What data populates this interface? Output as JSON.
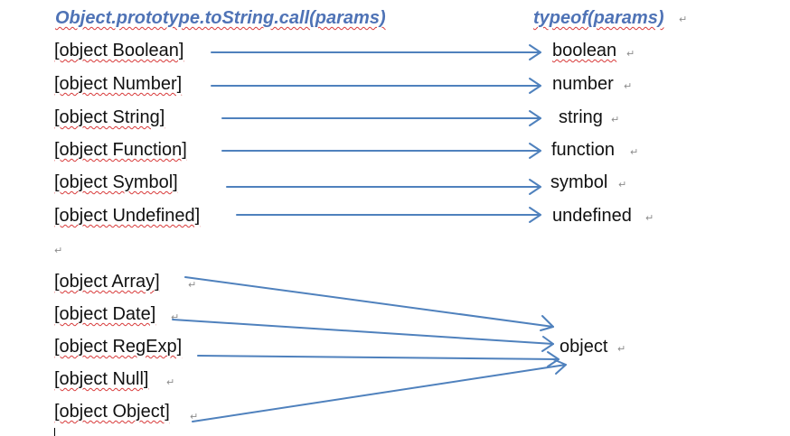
{
  "header": {
    "left": "Object.prototype.toString.call(params)",
    "right": "typeof(params)"
  },
  "rows": [
    {
      "left": "[object Boolean]",
      "right": "boolean"
    },
    {
      "left": "[object Number]",
      "right": "number"
    },
    {
      "left": "[object String]",
      "right": "string"
    },
    {
      "left": "[object Function]",
      "right": "function"
    },
    {
      "left": "[object Symbol]",
      "right": "symbol"
    },
    {
      "left": "[object Undefined]",
      "right": "undefined"
    }
  ],
  "group": {
    "items": [
      "[object Array]",
      "[object Date]",
      "[object RegExp]",
      "[object Null]",
      "[object Object]"
    ],
    "target": "object"
  },
  "colors": {
    "arrow": "#4f81bd",
    "header": "#4f73b6",
    "text": "#111111",
    "squiggle": "#d83a3a",
    "mark": "#8c8c8c"
  },
  "icons": {
    "paragraph_mark": "return-arrow-glyph"
  }
}
